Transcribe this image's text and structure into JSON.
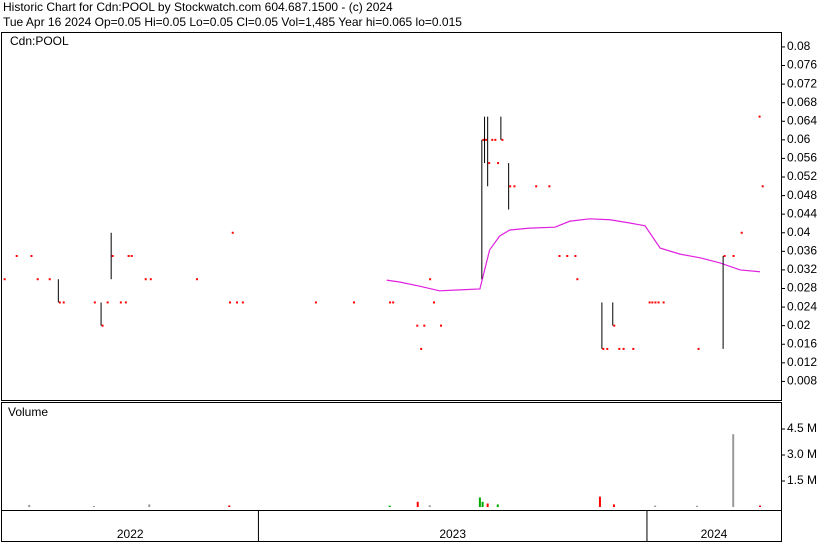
{
  "header": {
    "title": "Historic Chart for Cdn:POOL by Stockwatch.com 604.687.1500 - (c) 2024",
    "quote": "Tue Apr 16 2024  Op=0.05  Hi=0.05  Lo=0.05  Cl=0.05  Vol=1,485  Year hi=0.065  lo=0.015"
  },
  "chart_data": [
    {
      "type": "price",
      "label": "Cdn:POOL",
      "xlim": [
        2022.34,
        2024.345
      ],
      "ylim": [
        0.004,
        0.083
      ],
      "yticks": [
        0.08,
        0.076,
        0.072,
        0.068,
        0.064,
        0.06,
        0.056,
        0.052,
        0.048,
        0.044,
        0.04,
        0.036,
        0.032,
        0.028,
        0.024,
        0.02,
        0.016,
        0.012,
        0.008
      ],
      "xticks": [
        2023,
        2024
      ],
      "year_labels": [
        "2022",
        "2023",
        "2024"
      ],
      "x": [
        2022.343,
        2022.374,
        2022.412,
        2022.428,
        2022.459,
        2022.485,
        2022.495,
        2022.575,
        2022.595,
        2022.608,
        2022.621,
        2022.642,
        2022.655,
        2022.662,
        2022.67,
        2022.706,
        2022.719,
        2022.838,
        2022.923,
        2022.93,
        2022.941,
        2022.956,
        2023.144,
        2023.242,
        2023.335,
        2023.343,
        2023.405,
        2023.415,
        2023.423,
        2023.438,
        2023.448,
        2023.466,
        2023.575,
        2023.582,
        2023.59,
        2023.598,
        2023.606,
        2023.613,
        2023.624,
        2023.644,
        2023.655,
        2023.711,
        2023.745,
        2023.771,
        2023.791,
        2023.812,
        2023.817,
        2023.884,
        2023.894,
        2023.912,
        2023.925,
        2023.936,
        2023.961,
        2024.003,
        2024.01,
        2024.018,
        2024.026,
        2024.039,
        2024.129,
        2024.196,
        2024.219,
        2024.24,
        2024.286,
        2024.294
      ],
      "high": [
        0.03,
        0.035,
        0.035,
        0.03,
        0.03,
        0.03,
        0.025,
        0.025,
        0.025,
        0.025,
        0.04,
        0.025,
        0.025,
        0.035,
        0.035,
        0.03,
        0.03,
        0.03,
        0.025,
        0.04,
        0.025,
        0.025,
        0.025,
        0.025,
        0.025,
        0.025,
        0.02,
        0.015,
        0.02,
        0.03,
        0.025,
        0.02,
        0.06,
        0.065,
        0.065,
        0.06,
        0.06,
        0.055,
        0.065,
        0.055,
        0.05,
        0.05,
        0.05,
        0.035,
        0.035,
        0.035,
        0.03,
        0.025,
        0.015,
        0.025,
        0.015,
        0.015,
        0.015,
        0.025,
        0.025,
        0.025,
        0.025,
        0.025,
        0.015,
        0.035,
        0.035,
        0.04,
        0.065,
        0.05
      ],
      "low": [
        0.03,
        0.035,
        0.035,
        0.03,
        0.03,
        0.025,
        0.025,
        0.025,
        0.02,
        0.025,
        0.03,
        0.025,
        0.025,
        0.035,
        0.035,
        0.03,
        0.03,
        0.03,
        0.025,
        0.04,
        0.025,
        0.025,
        0.025,
        0.025,
        0.025,
        0.025,
        0.02,
        0.015,
        0.02,
        0.03,
        0.025,
        0.02,
        0.03,
        0.055,
        0.05,
        0.06,
        0.06,
        0.055,
        0.06,
        0.045,
        0.05,
        0.05,
        0.05,
        0.035,
        0.035,
        0.035,
        0.03,
        0.015,
        0.015,
        0.02,
        0.015,
        0.015,
        0.015,
        0.025,
        0.025,
        0.025,
        0.025,
        0.025,
        0.015,
        0.015,
        0.035,
        0.04,
        0.065,
        0.05
      ],
      "close": [
        0.03,
        0.035,
        0.035,
        0.03,
        0.03,
        0.025,
        0.025,
        0.025,
        0.02,
        0.025,
        0.035,
        0.025,
        0.025,
        0.035,
        0.035,
        0.03,
        0.03,
        0.03,
        0.025,
        0.04,
        0.025,
        0.025,
        0.025,
        0.025,
        0.025,
        0.025,
        0.02,
        0.015,
        0.02,
        0.03,
        0.025,
        0.02,
        0.06,
        0.06,
        0.055,
        0.06,
        0.06,
        0.055,
        0.06,
        0.05,
        0.05,
        0.05,
        0.05,
        0.035,
        0.035,
        0.035,
        0.03,
        0.015,
        0.015,
        0.02,
        0.015,
        0.015,
        0.015,
        0.025,
        0.025,
        0.025,
        0.025,
        0.025,
        0.015,
        0.035,
        0.035,
        0.04,
        0.065,
        0.05
      ],
      "bar_color": "#000000",
      "close_color": "#ff0000",
      "ma_x": [
        2023.33,
        2023.363,
        2023.415,
        2023.466,
        2023.518,
        2023.57,
        2023.595,
        2023.621,
        2023.647,
        2023.698,
        2023.763,
        2023.802,
        2023.853,
        2023.905,
        2023.956,
        2023.995,
        2024.034,
        2024.085,
        2024.137,
        2024.188,
        2024.24,
        2024.291
      ],
      "ma_values": [
        0.0298,
        0.0294,
        0.0285,
        0.0275,
        0.0277,
        0.0279,
        0.0363,
        0.0393,
        0.0406,
        0.041,
        0.0412,
        0.0425,
        0.043,
        0.0428,
        0.0421,
        0.0415,
        0.0367,
        0.0354,
        0.0346,
        0.0335,
        0.032,
        0.0316
      ],
      "ma_color": "#e020e0"
    },
    {
      "type": "volume",
      "label": "Volume",
      "xlim": [
        2022.34,
        2024.345
      ],
      "ylim": [
        0,
        6000000
      ],
      "yticks": [
        {
          "value": 4500000,
          "label": "4.5 M"
        },
        {
          "value": 3000000,
          "label": "3.0 M"
        },
        {
          "value": 1500000,
          "label": "1.5 M"
        }
      ],
      "x": [
        2022.41,
        2022.577,
        2022.719,
        2022.925,
        2023.338,
        2023.41,
        2023.441,
        2023.57,
        2023.577,
        2023.59,
        2023.616,
        2023.879,
        2023.915,
        2024.021,
        2024.129,
        2024.222,
        2024.291
      ],
      "values": [
        120000,
        60000,
        150000,
        90000,
        80000,
        300000,
        100000,
        550000,
        300000,
        200000,
        150000,
        600000,
        150000,
        80000,
        70000,
        4200000,
        80000
      ],
      "colors": [
        "#999999",
        "#999999",
        "#999999",
        "#ff0000",
        "#00aa00",
        "#ff0000",
        "#999999",
        "#00aa00",
        "#00aa00",
        "#ff0000",
        "#00aa00",
        "#ff0000",
        "#ff0000",
        "#999999",
        "#999999",
        "#999999",
        "#ff0000"
      ]
    }
  ]
}
